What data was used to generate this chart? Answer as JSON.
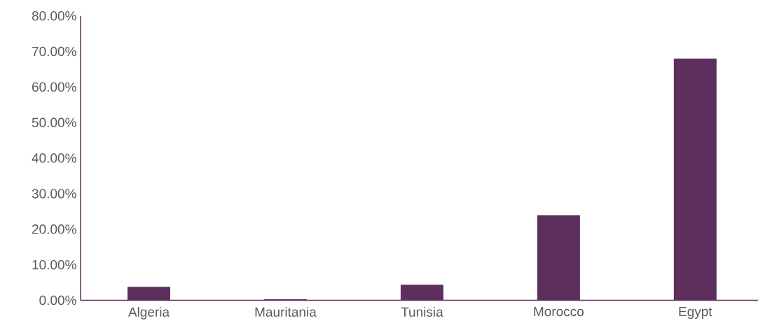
{
  "chart_data": {
    "type": "bar",
    "categories": [
      "Algeria",
      "Mauritania",
      "Tunisia",
      "Morocco",
      "Egypt"
    ],
    "values": [
      3.8,
      0.3,
      4.4,
      23.9,
      68.0
    ],
    "color": "#5e2f5c",
    "ylim": [
      0,
      80
    ],
    "yticks": [
      {
        "value": 0,
        "label": "0.00%"
      },
      {
        "value": 10,
        "label": "10.00%"
      },
      {
        "value": 20,
        "label": "20.00%"
      },
      {
        "value": 30,
        "label": "30.00%"
      },
      {
        "value": 40,
        "label": "40.00%"
      },
      {
        "value": 50,
        "label": "50.00%"
      },
      {
        "value": 60,
        "label": "60.00%"
      },
      {
        "value": 70,
        "label": "70.00%"
      },
      {
        "value": 80,
        "label": "80.00%"
      }
    ],
    "grid": false
  }
}
